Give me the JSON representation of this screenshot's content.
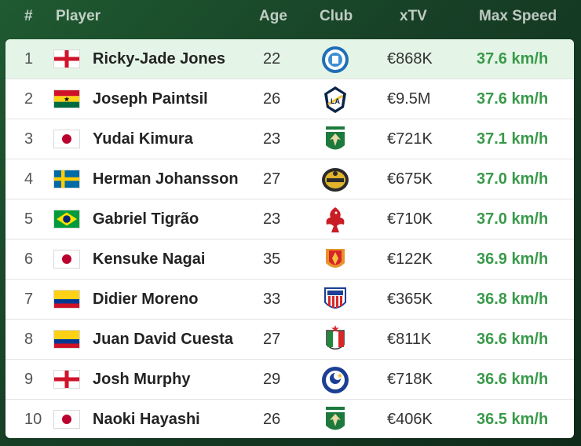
{
  "header": {
    "rank": "#",
    "player": "Player",
    "age": "Age",
    "club": "Club",
    "xtv": "xTV",
    "max_speed": "Max Speed"
  },
  "colors": {
    "speed_green": "#3a9a4a",
    "highlight_row": "#e4f5e7",
    "background_green": "#1f5a31"
  },
  "rows": [
    {
      "rank": "1",
      "flag": "england-flag",
      "name": "Ricky-Jade Jones",
      "age": "22",
      "club": "peterborough-crest",
      "xtv": "€868K",
      "speed": "37.6 km/h"
    },
    {
      "rank": "2",
      "flag": "ghana-flag",
      "name": "Joseph Paintsil",
      "age": "26",
      "club": "la-galaxy-crest",
      "xtv": "€9.5M",
      "speed": "37.6 km/h"
    },
    {
      "rank": "3",
      "flag": "japan-flag",
      "name": "Yudai Kimura",
      "age": "23",
      "club": "tokyo-verdy-crest",
      "xtv": "€721K",
      "speed": "37.1 km/h"
    },
    {
      "rank": "4",
      "flag": "sweden-flag",
      "name": "Herman Johansson",
      "age": "27",
      "club": "mjallby-crest",
      "xtv": "€675K",
      "speed": "37.0 km/h"
    },
    {
      "rank": "5",
      "flag": "brazil-flag",
      "name": "Gabriel Tigrão",
      "age": "23",
      "club": "red-eagle-crest",
      "xtv": "€710K",
      "speed": "37.0 km/h"
    },
    {
      "rank": "6",
      "flag": "japan-flag",
      "name": "Kensuke Nagai",
      "age": "35",
      "club": "nagoya-grampus-crest",
      "xtv": "€122K",
      "speed": "36.9 km/h"
    },
    {
      "rank": "7",
      "flag": "colombia-flag",
      "name": "Didier Moreno",
      "age": "33",
      "club": "junior-crest",
      "xtv": "€365K",
      "speed": "36.8 km/h"
    },
    {
      "rank": "8",
      "flag": "colombia-flag",
      "name": "Juan David Cuesta",
      "age": "27",
      "club": "once-caldas-crest",
      "xtv": "€811K",
      "speed": "36.6 km/h"
    },
    {
      "rank": "9",
      "flag": "england-flag",
      "name": "Josh Murphy",
      "age": "29",
      "club": "portsmouth-crest",
      "xtv": "€718K",
      "speed": "36.6 km/h"
    },
    {
      "rank": "10",
      "flag": "japan-flag",
      "name": "Naoki Hayashi",
      "age": "26",
      "club": "tokyo-verdy-crest",
      "xtv": "€406K",
      "speed": "36.5 km/h"
    }
  ]
}
